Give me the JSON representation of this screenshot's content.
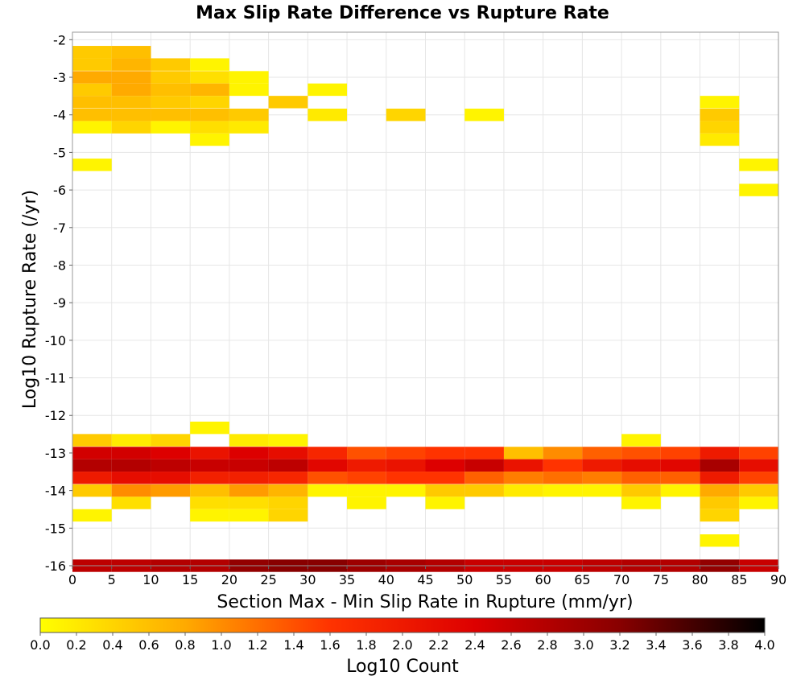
{
  "chart_data": {
    "type": "heatmap",
    "title": "Max Slip Rate Difference vs Rupture Rate",
    "xlabel": "Section Max - Min Slip Rate in Rupture (mm/yr)",
    "ylabel": "Log10 Rupture Rate (/yr)",
    "xlim": [
      0,
      90
    ],
    "ylim": [
      -16,
      -1.8
    ],
    "x_ticks": [
      "0",
      "5",
      "10",
      "15",
      "20",
      "25",
      "30",
      "35",
      "40",
      "45",
      "50",
      "55",
      "60",
      "65",
      "70",
      "75",
      "80",
      "85",
      "90"
    ],
    "y_ticks": [
      "-2",
      "-3",
      "-4",
      "-5",
      "-6",
      "-7",
      "-8",
      "-9",
      "-10",
      "-11",
      "-12",
      "-13",
      "-14",
      "-15",
      "-16"
    ],
    "x_bin_width": 5,
    "y_bin_height": 0.33,
    "grid": true,
    "colorbar": {
      "label": "Log10 Count",
      "min": 0.0,
      "max": 4.0,
      "ticks": [
        "0.0",
        "0.2",
        "0.4",
        "0.6",
        "0.8",
        "1.0",
        "1.2",
        "1.4",
        "1.6",
        "1.8",
        "2.0",
        "2.2",
        "2.4",
        "2.6",
        "2.8",
        "3.0",
        "3.2",
        "3.4",
        "3.6",
        "3.8",
        "4.0"
      ],
      "colors": [
        "#ffff00",
        "#ffaa00",
        "#ff3300",
        "#dd0000",
        "#880000",
        "#000000"
      ]
    },
    "cells": [
      {
        "x": 0,
        "y": -2.33,
        "v": 0.5
      },
      {
        "x": 5,
        "y": -2.33,
        "v": 0.6
      },
      {
        "x": 0,
        "y": -2.66,
        "v": 0.5
      },
      {
        "x": 5,
        "y": -2.66,
        "v": 0.7
      },
      {
        "x": 10,
        "y": -2.66,
        "v": 0.5
      },
      {
        "x": 15,
        "y": -2.66,
        "v": 0.1
      },
      {
        "x": 0,
        "y": -3.0,
        "v": 0.8
      },
      {
        "x": 5,
        "y": -3.0,
        "v": 0.8
      },
      {
        "x": 10,
        "y": -3.0,
        "v": 0.5
      },
      {
        "x": 15,
        "y": -3.0,
        "v": 0.3
      },
      {
        "x": 20,
        "y": -3.0,
        "v": 0.1
      },
      {
        "x": 0,
        "y": -3.33,
        "v": 0.5
      },
      {
        "x": 5,
        "y": -3.33,
        "v": 0.8
      },
      {
        "x": 10,
        "y": -3.33,
        "v": 0.6
      },
      {
        "x": 15,
        "y": -3.33,
        "v": 0.7
      },
      {
        "x": 20,
        "y": -3.33,
        "v": 0.1
      },
      {
        "x": 30,
        "y": -3.33,
        "v": 0.1
      },
      {
        "x": 0,
        "y": -3.66,
        "v": 0.6
      },
      {
        "x": 5,
        "y": -3.66,
        "v": 0.6
      },
      {
        "x": 10,
        "y": -3.66,
        "v": 0.5
      },
      {
        "x": 15,
        "y": -3.66,
        "v": 0.4
      },
      {
        "x": 25,
        "y": -3.66,
        "v": 0.5
      },
      {
        "x": 80,
        "y": -3.66,
        "v": 0.1
      },
      {
        "x": 0,
        "y": -4.0,
        "v": 0.6
      },
      {
        "x": 5,
        "y": -4.0,
        "v": 0.6
      },
      {
        "x": 10,
        "y": -4.0,
        "v": 0.6
      },
      {
        "x": 15,
        "y": -4.0,
        "v": 0.6
      },
      {
        "x": 20,
        "y": -4.0,
        "v": 0.5
      },
      {
        "x": 30,
        "y": -4.0,
        "v": 0.2
      },
      {
        "x": 40,
        "y": -4.0,
        "v": 0.4
      },
      {
        "x": 50,
        "y": -4.0,
        "v": 0.1
      },
      {
        "x": 0,
        "y": -4.33,
        "v": 0.1
      },
      {
        "x": 5,
        "y": -4.33,
        "v": 0.4
      },
      {
        "x": 10,
        "y": -4.33,
        "v": 0.1
      },
      {
        "x": 15,
        "y": -4.33,
        "v": 0.3
      },
      {
        "x": 20,
        "y": -4.33,
        "v": 0.2
      },
      {
        "x": 80,
        "y": -4.0,
        "v": 0.5
      },
      {
        "x": 80,
        "y": -4.33,
        "v": 0.4
      },
      {
        "x": 15,
        "y": -4.66,
        "v": 0.1
      },
      {
        "x": 80,
        "y": -4.66,
        "v": 0.2
      },
      {
        "x": 0,
        "y": -5.33,
        "v": 0.1
      },
      {
        "x": 85,
        "y": -5.33,
        "v": 0.1
      },
      {
        "x": 85,
        "y": -6.0,
        "v": 0.1
      },
      {
        "x": 15,
        "y": -12.33,
        "v": 0.1
      },
      {
        "x": 0,
        "y": -12.66,
        "v": 0.5
      },
      {
        "x": 5,
        "y": -12.66,
        "v": 0.2
      },
      {
        "x": 10,
        "y": -12.66,
        "v": 0.4
      },
      {
        "x": 20,
        "y": -12.66,
        "v": 0.2
      },
      {
        "x": 25,
        "y": -12.66,
        "v": 0.1
      },
      {
        "x": 70,
        "y": -12.66,
        "v": 0.1
      },
      {
        "x": 0,
        "y": -13.0,
        "v": 2.5
      },
      {
        "x": 5,
        "y": -13.0,
        "v": 2.5
      },
      {
        "x": 10,
        "y": -13.0,
        "v": 2.4
      },
      {
        "x": 15,
        "y": -13.0,
        "v": 2.1
      },
      {
        "x": 20,
        "y": -13.0,
        "v": 2.4
      },
      {
        "x": 25,
        "y": -13.0,
        "v": 2.2
      },
      {
        "x": 30,
        "y": -13.0,
        "v": 1.8
      },
      {
        "x": 35,
        "y": -13.0,
        "v": 1.4
      },
      {
        "x": 40,
        "y": -13.0,
        "v": 1.5
      },
      {
        "x": 45,
        "y": -13.0,
        "v": 1.6
      },
      {
        "x": 50,
        "y": -13.0,
        "v": 1.6
      },
      {
        "x": 55,
        "y": -13.0,
        "v": 0.6
      },
      {
        "x": 60,
        "y": -13.0,
        "v": 1.0
      },
      {
        "x": 65,
        "y": -13.0,
        "v": 1.3
      },
      {
        "x": 70,
        "y": -13.0,
        "v": 1.4
      },
      {
        "x": 75,
        "y": -13.0,
        "v": 1.5
      },
      {
        "x": 80,
        "y": -13.0,
        "v": 2.0
      },
      {
        "x": 85,
        "y": -13.0,
        "v": 1.5
      },
      {
        "x": 0,
        "y": -13.33,
        "v": 2.8
      },
      {
        "x": 5,
        "y": -13.33,
        "v": 2.8
      },
      {
        "x": 10,
        "y": -13.33,
        "v": 2.7
      },
      {
        "x": 15,
        "y": -13.33,
        "v": 2.6
      },
      {
        "x": 20,
        "y": -13.33,
        "v": 2.6
      },
      {
        "x": 25,
        "y": -13.33,
        "v": 2.7
      },
      {
        "x": 30,
        "y": -13.33,
        "v": 2.3
      },
      {
        "x": 35,
        "y": -13.33,
        "v": 2.0
      },
      {
        "x": 40,
        "y": -13.33,
        "v": 2.1
      },
      {
        "x": 45,
        "y": -13.33,
        "v": 2.4
      },
      {
        "x": 50,
        "y": -13.33,
        "v": 2.6
      },
      {
        "x": 55,
        "y": -13.33,
        "v": 2.1
      },
      {
        "x": 60,
        "y": -13.33,
        "v": 1.6
      },
      {
        "x": 65,
        "y": -13.33,
        "v": 2.0
      },
      {
        "x": 70,
        "y": -13.33,
        "v": 2.2
      },
      {
        "x": 75,
        "y": -13.33,
        "v": 2.3
      },
      {
        "x": 80,
        "y": -13.33,
        "v": 2.9
      },
      {
        "x": 85,
        "y": -13.33,
        "v": 2.2
      },
      {
        "x": 0,
        "y": -13.66,
        "v": 2.0
      },
      {
        "x": 5,
        "y": -13.66,
        "v": 2.2
      },
      {
        "x": 10,
        "y": -13.66,
        "v": 2.2
      },
      {
        "x": 15,
        "y": -13.66,
        "v": 1.9
      },
      {
        "x": 20,
        "y": -13.66,
        "v": 1.9
      },
      {
        "x": 25,
        "y": -13.66,
        "v": 1.8
      },
      {
        "x": 30,
        "y": -13.66,
        "v": 1.4
      },
      {
        "x": 35,
        "y": -13.66,
        "v": 1.5
      },
      {
        "x": 40,
        "y": -13.66,
        "v": 1.6
      },
      {
        "x": 45,
        "y": -13.66,
        "v": 1.6
      },
      {
        "x": 50,
        "y": -13.66,
        "v": 1.3
      },
      {
        "x": 55,
        "y": -13.66,
        "v": 1.1
      },
      {
        "x": 60,
        "y": -13.66,
        "v": 1.2
      },
      {
        "x": 65,
        "y": -13.66,
        "v": 1.1
      },
      {
        "x": 70,
        "y": -13.66,
        "v": 1.3
      },
      {
        "x": 75,
        "y": -13.66,
        "v": 1.3
      },
      {
        "x": 80,
        "y": -13.66,
        "v": 2.0
      },
      {
        "x": 85,
        "y": -13.66,
        "v": 1.5
      },
      {
        "x": 0,
        "y": -14.0,
        "v": 0.5
      },
      {
        "x": 5,
        "y": -14.0,
        "v": 1.0
      },
      {
        "x": 10,
        "y": -14.0,
        "v": 0.9
      },
      {
        "x": 15,
        "y": -14.0,
        "v": 0.6
      },
      {
        "x": 20,
        "y": -14.0,
        "v": 0.9
      },
      {
        "x": 25,
        "y": -14.0,
        "v": 0.7
      },
      {
        "x": 30,
        "y": -14.0,
        "v": 0.1
      },
      {
        "x": 35,
        "y": -14.0,
        "v": 0.1
      },
      {
        "x": 40,
        "y": -14.0,
        "v": 0.1
      },
      {
        "x": 45,
        "y": -14.0,
        "v": 0.5
      },
      {
        "x": 50,
        "y": -14.0,
        "v": 0.5
      },
      {
        "x": 55,
        "y": -14.0,
        "v": 0.2
      },
      {
        "x": 60,
        "y": -14.0,
        "v": 0.1
      },
      {
        "x": 65,
        "y": -14.0,
        "v": 0.1
      },
      {
        "x": 70,
        "y": -14.0,
        "v": 0.5
      },
      {
        "x": 75,
        "y": -14.0,
        "v": 0.1
      },
      {
        "x": 80,
        "y": -14.0,
        "v": 0.8
      },
      {
        "x": 85,
        "y": -14.0,
        "v": 0.5
      },
      {
        "x": 5,
        "y": -14.33,
        "v": 0.3
      },
      {
        "x": 15,
        "y": -14.33,
        "v": 0.3
      },
      {
        "x": 20,
        "y": -14.33,
        "v": 0.3
      },
      {
        "x": 25,
        "y": -14.33,
        "v": 0.4
      },
      {
        "x": 35,
        "y": -14.33,
        "v": 0.1
      },
      {
        "x": 45,
        "y": -14.33,
        "v": 0.1
      },
      {
        "x": 70,
        "y": -14.33,
        "v": 0.1
      },
      {
        "x": 80,
        "y": -14.33,
        "v": 0.5
      },
      {
        "x": 85,
        "y": -14.33,
        "v": 0.1
      },
      {
        "x": 0,
        "y": -14.66,
        "v": 0.1
      },
      {
        "x": 15,
        "y": -14.66,
        "v": 0.1
      },
      {
        "x": 20,
        "y": -14.66,
        "v": 0.1
      },
      {
        "x": 25,
        "y": -14.66,
        "v": 0.4
      },
      {
        "x": 80,
        "y": -14.66,
        "v": 0.4
      },
      {
        "x": 80,
        "y": -15.33,
        "v": 0.1
      },
      {
        "x": 0,
        "y": -16.0,
        "v": 2.7
      },
      {
        "x": 5,
        "y": -16.0,
        "v": 2.7
      },
      {
        "x": 10,
        "y": -16.0,
        "v": 2.8
      },
      {
        "x": 15,
        "y": -16.0,
        "v": 2.8
      },
      {
        "x": 20,
        "y": -16.0,
        "v": 3.1
      },
      {
        "x": 25,
        "y": -16.0,
        "v": 3.2
      },
      {
        "x": 30,
        "y": -16.0,
        "v": 3.2
      },
      {
        "x": 35,
        "y": -16.0,
        "v": 3.0
      },
      {
        "x": 40,
        "y": -16.0,
        "v": 2.9
      },
      {
        "x": 45,
        "y": -16.0,
        "v": 2.8
      },
      {
        "x": 50,
        "y": -16.0,
        "v": 2.6
      },
      {
        "x": 55,
        "y": -16.0,
        "v": 2.6
      },
      {
        "x": 60,
        "y": -16.0,
        "v": 2.6
      },
      {
        "x": 65,
        "y": -16.0,
        "v": 2.7
      },
      {
        "x": 70,
        "y": -16.0,
        "v": 2.8
      },
      {
        "x": 75,
        "y": -16.0,
        "v": 2.8
      },
      {
        "x": 80,
        "y": -16.0,
        "v": 3.1
      },
      {
        "x": 85,
        "y": -16.0,
        "v": 2.6
      }
    ]
  }
}
